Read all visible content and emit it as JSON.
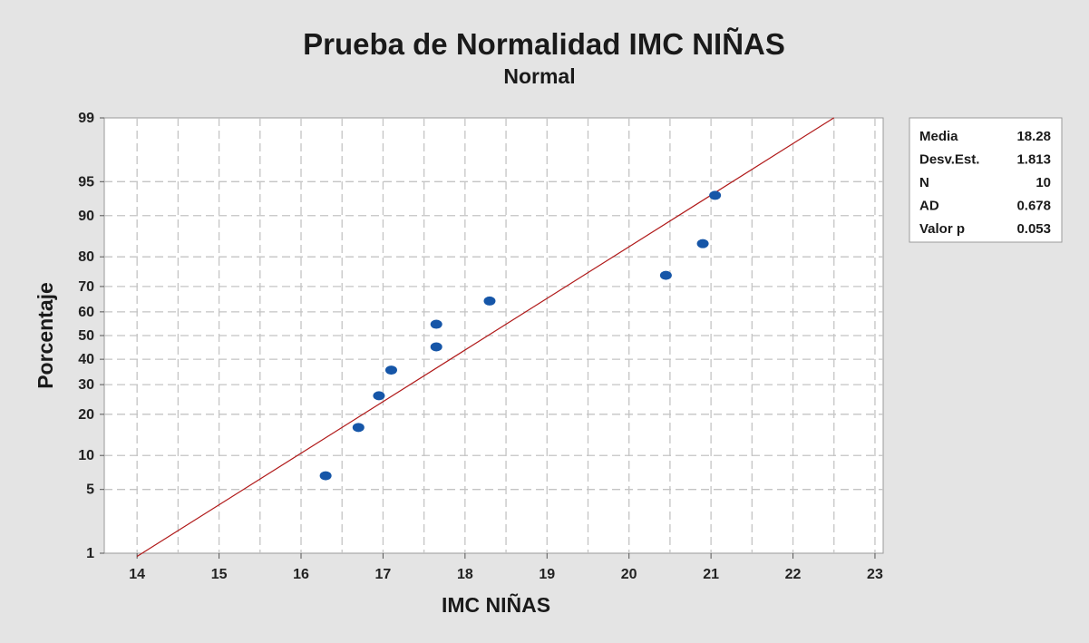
{
  "chart_data": {
    "type": "scatter",
    "title": "Prueba de Normalidad IMC NIÑAS",
    "subtitle": "Normal",
    "xlabel": "IMC NIÑAS",
    "ylabel": "Porcentaje",
    "xlim": [
      13.6,
      23.1
    ],
    "ylim": [
      1,
      99
    ],
    "y_scale": "normal-probability",
    "grid": true,
    "x_ticks": [
      14,
      15,
      16,
      17,
      18,
      19,
      20,
      21,
      22,
      23
    ],
    "y_ticks": [
      1,
      5,
      10,
      20,
      30,
      40,
      50,
      60,
      70,
      80,
      90,
      95,
      99
    ],
    "points": [
      {
        "x": 16.3,
        "y": 6.7
      },
      {
        "x": 16.7,
        "y": 16.3
      },
      {
        "x": 16.95,
        "y": 26.0
      },
      {
        "x": 17.1,
        "y": 35.6
      },
      {
        "x": 17.65,
        "y": 45.2
      },
      {
        "x": 17.65,
        "y": 54.8
      },
      {
        "x": 18.3,
        "y": 64.4
      },
      {
        "x": 20.45,
        "y": 74.0
      },
      {
        "x": 20.9,
        "y": 83.7
      },
      {
        "x": 21.05,
        "y": 93.3
      }
    ],
    "fit_line": {
      "mean": 18.28,
      "sd": 1.813,
      "x_start": 14.0,
      "x_end": 22.5
    },
    "colors": {
      "points": "#1656a8",
      "fit_line": "#b01818",
      "grid": "#c4c4c4",
      "plot_bg": "#ffffff"
    }
  },
  "legend": {
    "position": "top-right",
    "rows": [
      {
        "label": "Media",
        "value": "18.28"
      },
      {
        "label": "Desv.Est.",
        "value": "1.813"
      },
      {
        "label": "N",
        "value": "10"
      },
      {
        "label": "AD",
        "value": "0.678"
      },
      {
        "label": "Valor p",
        "value": "0.053"
      }
    ]
  }
}
